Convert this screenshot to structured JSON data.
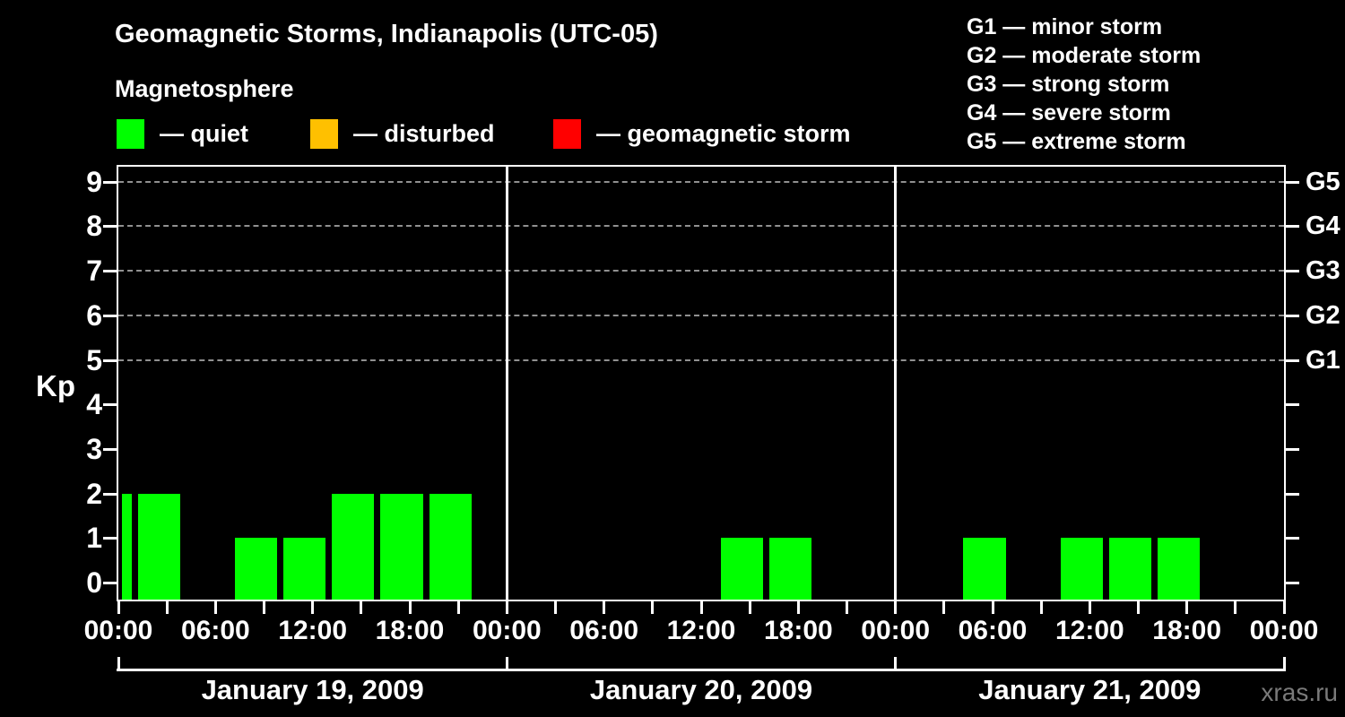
{
  "header": {
    "title": "Geomagnetic Storms, Indianapolis (UTC-05)",
    "subtitle": "Magnetosphere"
  },
  "legend": {
    "items": [
      {
        "status": "quiet",
        "label": "— quiet",
        "color": "#00ff00"
      },
      {
        "status": "disturbed",
        "label": "— disturbed",
        "color": "#ffc000"
      },
      {
        "status": "geomagnetic storm",
        "label": "— geomagnetic storm",
        "color": "#ff0000"
      }
    ]
  },
  "g_legend": [
    "G1 — minor storm",
    "G2 — moderate storm",
    "G3 — strong storm",
    "G4 — severe storm",
    "G5 — extreme storm"
  ],
  "axes": {
    "kp_label": "Kp",
    "kp_ticks": [
      0,
      1,
      2,
      3,
      4,
      5,
      6,
      7,
      8,
      9
    ],
    "g_ticks": [
      {
        "label": "G1",
        "kp": 5
      },
      {
        "label": "G2",
        "kp": 6
      },
      {
        "label": "G3",
        "kp": 7
      },
      {
        "label": "G4",
        "kp": 8
      },
      {
        "label": "G5",
        "kp": 9
      }
    ],
    "time_tick_labels": [
      "00:00",
      "06:00",
      "12:00",
      "18:00"
    ],
    "closing_time_label": "00:00",
    "minor_tick_hours": [
      0,
      3,
      6,
      9,
      12,
      15,
      18,
      21
    ]
  },
  "watermark": "xras.ru",
  "colors": {
    "background": "#000000",
    "frame": "#ffffff",
    "gridline": "#909090",
    "quiet": "#00ff00",
    "disturbed": "#ffc000",
    "storm": "#ff0000",
    "watermark": "#7a7a7a"
  },
  "chart_data": {
    "type": "bar",
    "title": "Geomagnetic Storms, Indianapolis (UTC-05)",
    "subtitle": "Magnetosphere",
    "ylabel": "Kp",
    "ylim": [
      0,
      9.6
    ],
    "yticks": [
      0,
      1,
      2,
      3,
      4,
      5,
      6,
      7,
      8,
      9
    ],
    "right_axis_labels": {
      "G1": 5,
      "G2": 6,
      "G3": 7,
      "G4": 8,
      "G5": 9
    },
    "grid": "dashed horizontal gridlines at Kp 5-9 only",
    "legend_position": "top",
    "timezone": "UTC-05",
    "bar_interval_hours": 3,
    "note": "3-hour Kp index bars; interval boundaries fall at 01:00/04:00/07:00/10:00/13:00/16:00/19:00/22:00 local time; all shown bars are quiet (green); empty slots are Kp 0",
    "days": [
      {
        "date": "January 19, 2009",
        "bars": [
          {
            "start_hour": 0,
            "end_hour": 1,
            "kp": 2,
            "status": "quiet",
            "clipped": true
          },
          {
            "start_hour": 1,
            "end_hour": 4,
            "kp": 2,
            "status": "quiet"
          },
          {
            "start_hour": 7,
            "end_hour": 10,
            "kp": 1,
            "status": "quiet"
          },
          {
            "start_hour": 10,
            "end_hour": 13,
            "kp": 1,
            "status": "quiet"
          },
          {
            "start_hour": 13,
            "end_hour": 16,
            "kp": 2,
            "status": "quiet"
          },
          {
            "start_hour": 16,
            "end_hour": 19,
            "kp": 2,
            "status": "quiet"
          },
          {
            "start_hour": 19,
            "end_hour": 22,
            "kp": 2,
            "status": "quiet"
          }
        ]
      },
      {
        "date": "January 20, 2009",
        "bars": [
          {
            "start_hour": 13,
            "end_hour": 16,
            "kp": 1,
            "status": "quiet"
          },
          {
            "start_hour": 16,
            "end_hour": 19,
            "kp": 1,
            "status": "quiet"
          }
        ]
      },
      {
        "date": "January 21, 2009",
        "bars": [
          {
            "start_hour": 4,
            "end_hour": 7,
            "kp": 1,
            "status": "quiet"
          },
          {
            "start_hour": 10,
            "end_hour": 13,
            "kp": 1,
            "status": "quiet"
          },
          {
            "start_hour": 13,
            "end_hour": 16,
            "kp": 1,
            "status": "quiet"
          },
          {
            "start_hour": 16,
            "end_hour": 19,
            "kp": 1,
            "status": "quiet"
          }
        ]
      }
    ]
  }
}
